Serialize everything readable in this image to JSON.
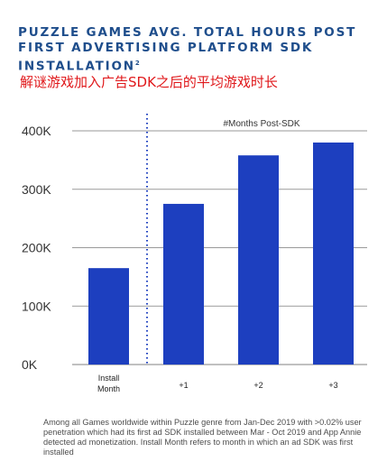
{
  "title": "PUZZLE GAMES AVG. TOTAL HOURS POST FIRST ADVERTISING PLATFORM SDK INSTALLATION",
  "title_sup": "2",
  "subtitle": "解谜游戏加入广告SDK之后的平均游戏时长",
  "footnote": "Among all Games worldwide within Puzzle genre from Jan-Dec 2019 with >0.02% user penetration which had its first ad SDK installed between Mar - Oct 2019 and App Annie detected ad monetization. Install Month refers to month in which an ad SDK was first installed",
  "colors": {
    "bar": "#1d3fbf",
    "title": "#1f4e8c",
    "annotation": "#e0181b",
    "grid": "#9a9a9a",
    "divider": "#1d3fbf"
  },
  "chart_data": {
    "type": "bar",
    "categories": [
      "Install\nMonth",
      "+1",
      "+2",
      "+3"
    ],
    "values": [
      165000,
      275000,
      358000,
      380000
    ],
    "ylim": [
      0,
      400000
    ],
    "yticks": [
      0,
      100000,
      200000,
      300000,
      400000
    ],
    "ytick_labels": [
      "0K",
      "100K",
      "200K",
      "300K",
      "400K"
    ],
    "annotation": "#Months Post-SDK",
    "grid": true,
    "legend": "none"
  }
}
